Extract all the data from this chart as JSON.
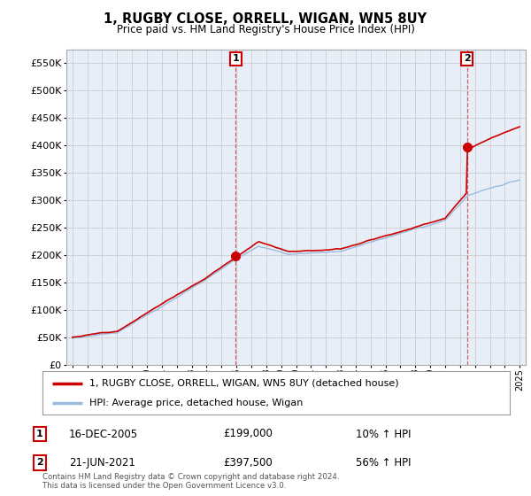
{
  "title": "1, RUGBY CLOSE, ORRELL, WIGAN, WN5 8UY",
  "subtitle": "Price paid vs. HM Land Registry's House Price Index (HPI)",
  "legend_line1": "1, RUGBY CLOSE, ORRELL, WIGAN, WN5 8UY (detached house)",
  "legend_line2": "HPI: Average price, detached house, Wigan",
  "transaction1_date": "16-DEC-2005",
  "transaction1_price": "£199,000",
  "transaction1_hpi": "10% ↑ HPI",
  "transaction2_date": "21-JUN-2021",
  "transaction2_price": "£397,500",
  "transaction2_hpi": "56% ↑ HPI",
  "footer": "Contains HM Land Registry data © Crown copyright and database right 2024.\nThis data is licensed under the Open Government Licence v3.0.",
  "price_color": "#cc0000",
  "hpi_color": "#99bbdd",
  "marker_color": "#cc0000",
  "annotation_box_color": "#cc0000",
  "chart_bg": "#e8eef8",
  "ylim_min": 0,
  "ylim_max": 575000,
  "yticks": [
    0,
    50000,
    100000,
    150000,
    200000,
    250000,
    300000,
    350000,
    400000,
    450000,
    500000,
    550000
  ],
  "background_color": "#ffffff",
  "grid_color": "#cccccc",
  "t1_year": 2005.96,
  "t2_year": 2021.46,
  "t1_price": 199000,
  "t2_price": 397500
}
